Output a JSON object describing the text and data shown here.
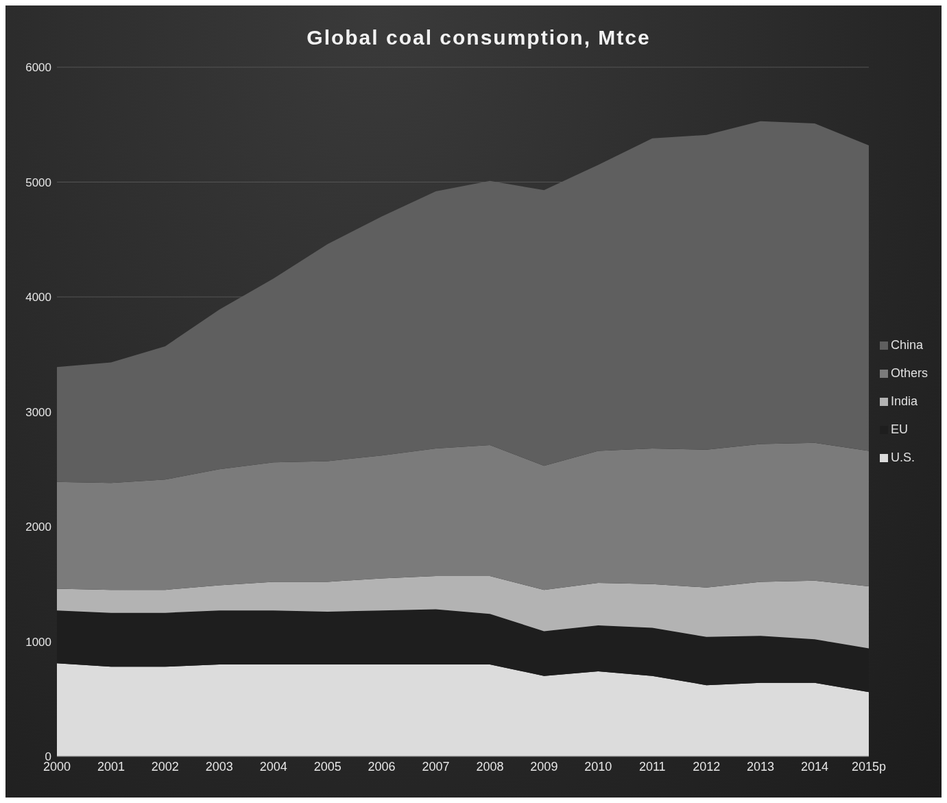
{
  "chart_data": {
    "type": "area",
    "title": "Global  coal consumption, Mtce",
    "stacked": true,
    "categories": [
      "2000",
      "2001",
      "2002",
      "2003",
      "2004",
      "2005",
      "2006",
      "2007",
      "2008",
      "2009",
      "2010",
      "2011",
      "2012",
      "2013",
      "2014",
      "2015p"
    ],
    "series": [
      {
        "name": "U.S.",
        "color": "#dcdcdc",
        "values": [
          810,
          780,
          780,
          800,
          800,
          800,
          800,
          800,
          800,
          700,
          740,
          700,
          620,
          640,
          640,
          560
        ]
      },
      {
        "name": "EU",
        "color": "#1e1e1e",
        "values": [
          460,
          470,
          470,
          470,
          470,
          460,
          470,
          480,
          440,
          390,
          400,
          420,
          420,
          410,
          380,
          380
        ]
      },
      {
        "name": "India",
        "color": "#b3b3b3",
        "values": [
          190,
          200,
          200,
          220,
          250,
          260,
          280,
          290,
          330,
          360,
          370,
          380,
          430,
          470,
          510,
          540
        ]
      },
      {
        "name": "Others",
        "color": "#7b7b7b",
        "values": [
          930,
          930,
          960,
          1010,
          1040,
          1050,
          1070,
          1110,
          1140,
          1080,
          1150,
          1180,
          1200,
          1200,
          1200,
          1180
        ]
      },
      {
        "name": "China",
        "color": "#5f5f5f",
        "values": [
          1000,
          1050,
          1160,
          1390,
          1600,
          1890,
          2080,
          2240,
          2300,
          2400,
          2490,
          2700,
          2740,
          2810,
          2780,
          2660
        ]
      }
    ],
    "ylim": [
      0,
      6000
    ],
    "yticks": [
      0,
      1000,
      2000,
      3000,
      4000,
      5000,
      6000
    ],
    "grid": "y",
    "legend": "right"
  }
}
